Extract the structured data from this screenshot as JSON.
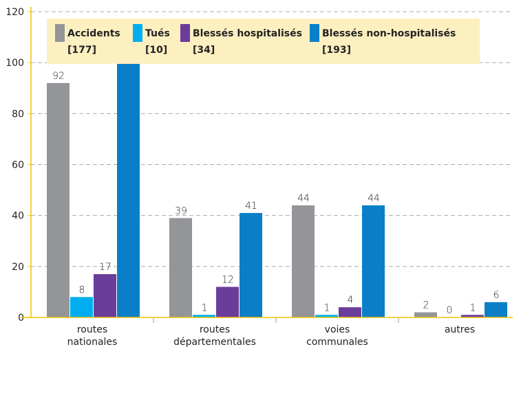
{
  "chart_data": {
    "type": "bar",
    "categories": [
      "routes nationales",
      "routes départementales",
      "voies communales",
      "autres"
    ],
    "series": [
      {
        "name": "Accidents",
        "total_label": "[177]",
        "color": "#939598",
        "values": [
          92,
          39,
          44,
          2
        ]
      },
      {
        "name": "Tués",
        "total_label": "[10]",
        "color": "#00aeef",
        "values": [
          8,
          1,
          1,
          0
        ]
      },
      {
        "name": "Blessés hospitalisés",
        "total_label": "[34]",
        "color": "#6b3d9a",
        "values": [
          17,
          12,
          4,
          1
        ]
      },
      {
        "name": "Blessés non-hospitalisés",
        "total_label": "[193]",
        "color": "#0a7fc8",
        "values": [
          102,
          41,
          44,
          6
        ]
      }
    ],
    "ylim": [
      0,
      120
    ],
    "yticks": [
      0,
      20,
      40,
      60,
      80,
      100,
      120
    ],
    "grid": true,
    "legend": "top"
  }
}
